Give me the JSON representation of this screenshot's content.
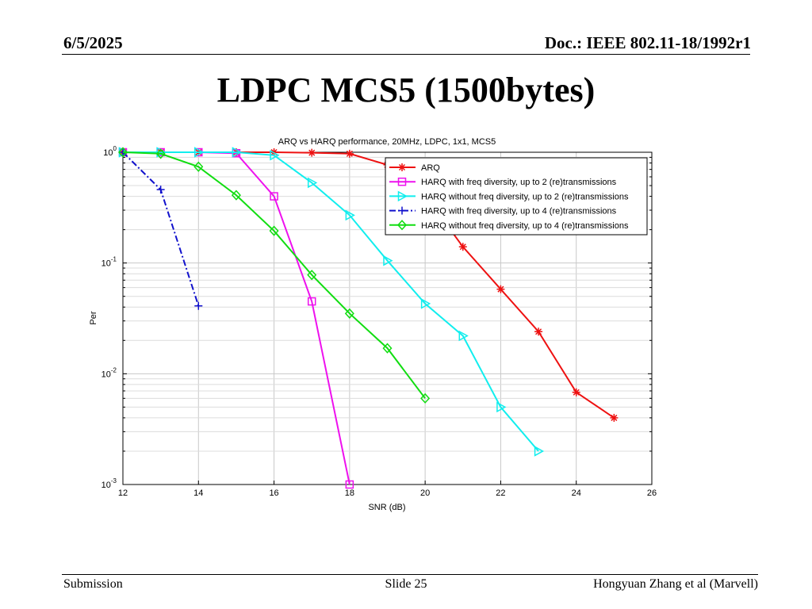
{
  "header": {
    "date": "6/5/2025",
    "doc": "Doc.: IEEE 802.11-18/1992r1"
  },
  "slide": {
    "title": "LDPC MCS5 (1500bytes)"
  },
  "footer": {
    "left": "Submission",
    "center": "Slide 25",
    "right": "Hongyuan Zhang et al (Marvell)"
  },
  "chart_data": {
    "type": "line",
    "title": "ARQ vs HARQ performance, 20MHz, LDPC, 1x1, MCS5",
    "xlabel": "SNR (dB)",
    "ylabel": "Per",
    "xlim": [
      12,
      26
    ],
    "ylim": [
      0.001,
      1
    ],
    "y_scale": "log",
    "x_ticks": [
      12,
      14,
      16,
      18,
      20,
      22,
      24,
      26
    ],
    "y_ticks": [
      {
        "value": 1,
        "base": "10",
        "exp": "0"
      },
      {
        "value": 0.1,
        "base": "10",
        "exp": "-1"
      },
      {
        "value": 0.01,
        "base": "10",
        "exp": "-2"
      },
      {
        "value": 0.001,
        "base": "10",
        "exp": "-3"
      }
    ],
    "grid": true,
    "legend_position": "top-right",
    "series": [
      {
        "name": "ARQ",
        "color": "#ee1111",
        "marker": "star",
        "dash": "solid",
        "points": [
          [
            12,
            1.0
          ],
          [
            13,
            1.0
          ],
          [
            14,
            1.0
          ],
          [
            15,
            1.0
          ],
          [
            16,
            1.0
          ],
          [
            17,
            0.99
          ],
          [
            18,
            0.97
          ],
          [
            19,
            0.77
          ],
          [
            20,
            0.41
          ],
          [
            21,
            0.14
          ],
          [
            22,
            0.058
          ],
          [
            23,
            0.024
          ],
          [
            24,
            0.0068
          ],
          [
            25,
            0.004
          ]
        ]
      },
      {
        "name": "HARQ with freq diversity, up to 2 (re)transmissions",
        "color": "#ee11ee",
        "marker": "square",
        "dash": "solid",
        "points": [
          [
            12,
            1.0
          ],
          [
            13,
            1.0
          ],
          [
            14,
            1.0
          ],
          [
            15,
            0.98
          ],
          [
            16,
            0.4
          ],
          [
            17,
            0.045
          ],
          [
            18,
            0.001
          ]
        ]
      },
      {
        "name": "HARQ without freq diversity, up to 2 (re)transmissions",
        "color": "#11eeee",
        "marker": "triangle-right",
        "dash": "solid",
        "points": [
          [
            12,
            1.0
          ],
          [
            13,
            1.0
          ],
          [
            14,
            1.0
          ],
          [
            15,
            1.0
          ],
          [
            16,
            0.94
          ],
          [
            17,
            0.53
          ],
          [
            18,
            0.27
          ],
          [
            19,
            0.105
          ],
          [
            20,
            0.043
          ],
          [
            21,
            0.022
          ],
          [
            22,
            0.005
          ],
          [
            23,
            0.002
          ]
        ]
      },
      {
        "name": "HARQ with freq diversity, up to 4 (re)transmissions",
        "color": "#1111cc",
        "marker": "plus",
        "dash": "dashdot",
        "points": [
          [
            12,
            1.0
          ],
          [
            13,
            0.46
          ],
          [
            14,
            0.041
          ]
        ]
      },
      {
        "name": "HARQ without freq diversity, up to 4 (re)transmissions",
        "color": "#11dd11",
        "marker": "diamond",
        "dash": "solid",
        "points": [
          [
            12,
            1.0
          ],
          [
            13,
            0.97
          ],
          [
            14,
            0.74
          ],
          [
            15,
            0.41
          ],
          [
            16,
            0.195
          ],
          [
            17,
            0.078
          ],
          [
            18,
            0.035
          ],
          [
            19,
            0.017
          ],
          [
            20,
            0.006
          ]
        ]
      }
    ]
  }
}
